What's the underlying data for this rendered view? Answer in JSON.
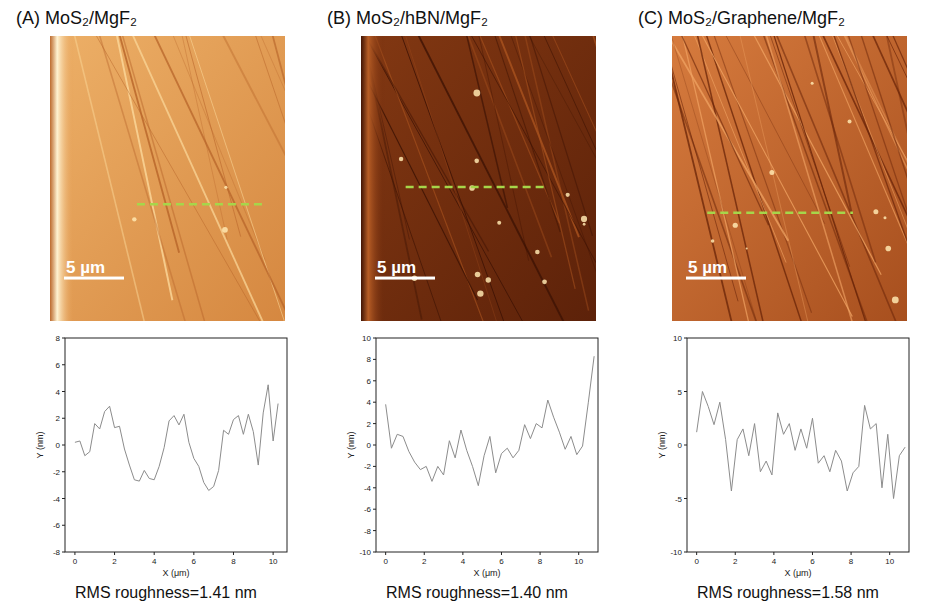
{
  "chart_data": [
    {
      "type": "line",
      "title": "(A) MoS₂/MgF₂",
      "scale_bar": "5 µm",
      "x_label": "X (μm)",
      "y_label": "Y (nm)",
      "annotation": "RMS roughness=1.41 nm",
      "color": "#8c8c8c",
      "x": [
        0,
        0.25,
        0.5,
        0.75,
        1,
        1.25,
        1.5,
        1.75,
        2,
        2.25,
        2.5,
        2.75,
        3,
        3.25,
        3.5,
        3.75,
        4,
        4.25,
        4.5,
        4.75,
        5,
        5.25,
        5.5,
        5.75,
        6,
        6.25,
        6.5,
        6.75,
        7,
        7.25,
        7.5,
        7.75,
        8,
        8.25,
        8.5,
        8.75,
        9,
        9.25,
        9.5,
        9.75,
        10,
        10.25
      ],
      "values": [
        0.2,
        0.3,
        -0.8,
        -0.5,
        1.6,
        1.2,
        2.5,
        2.9,
        1.3,
        1.4,
        -0.3,
        -1.5,
        -2.6,
        -2.7,
        -1.9,
        -2.5,
        -2.6,
        -1.6,
        -0.2,
        1.8,
        2.2,
        1.5,
        2.3,
        0.2,
        -1.0,
        -1.6,
        -2.8,
        -3.4,
        -3.1,
        -1.9,
        1.1,
        0.8,
        1.9,
        2.2,
        0.8,
        2.3,
        1.0,
        -1.5,
        2.4,
        4.5,
        0.3,
        3.1
      ],
      "xlim": [
        -0.5,
        10.7
      ],
      "ylim": [
        -8,
        8
      ],
      "xticks": [
        0,
        2,
        4,
        6,
        8,
        10
      ],
      "yticks": [
        -8,
        -6,
        -4,
        -2,
        0,
        2,
        4,
        6,
        8
      ]
    },
    {
      "type": "line",
      "title": "(B) MoS₂/hBN/MgF₂",
      "scale_bar": "5 µm",
      "x_label": "X (μm)",
      "y_label": "Y (nm)",
      "annotation": "RMS roughness=1.40 nm",
      "color": "#8c8c8c",
      "x": [
        0,
        0.3,
        0.6,
        0.9,
        1.2,
        1.5,
        1.8,
        2.1,
        2.4,
        2.7,
        3.0,
        3.3,
        3.6,
        3.9,
        4.2,
        4.5,
        4.8,
        5.1,
        5.4,
        5.7,
        6.0,
        6.3,
        6.6,
        6.9,
        7.2,
        7.5,
        7.8,
        8.1,
        8.4,
        8.7,
        9.0,
        9.3,
        9.6,
        9.9,
        10.2,
        10.5,
        10.8
      ],
      "values": [
        3.8,
        -0.3,
        1.0,
        0.8,
        -0.6,
        -1.6,
        -2.3,
        -2.0,
        -3.4,
        -2.0,
        -2.8,
        0.4,
        -1.2,
        1.4,
        -0.5,
        -2.0,
        -3.8,
        -1.0,
        0.8,
        -2.6,
        -0.8,
        -0.3,
        -1.2,
        -0.5,
        1.9,
        0.6,
        2.0,
        1.6,
        4.2,
        2.6,
        1.2,
        -0.4,
        0.8,
        -0.9,
        -0.1,
        4.0,
        8.3
      ],
      "xlim": [
        -0.5,
        11
      ],
      "ylim": [
        -10,
        10
      ],
      "xticks": [
        0,
        2,
        4,
        6,
        8,
        10
      ],
      "yticks": [
        -10,
        -8,
        -6,
        -4,
        -2,
        0,
        2,
        4,
        6,
        8,
        10
      ]
    },
    {
      "type": "line",
      "title": "(C) MoS₂/Graphene/MgF₂",
      "scale_bar": "5 µm",
      "x_label": "X (μm)",
      "y_label": "Y (nm)",
      "annotation": "RMS roughness=1.58 nm",
      "color": "#8c8c8c",
      "x": [
        0,
        0.3,
        0.6,
        0.9,
        1.2,
        1.5,
        1.8,
        2.1,
        2.4,
        2.7,
        3.0,
        3.3,
        3.6,
        3.9,
        4.2,
        4.5,
        4.8,
        5.1,
        5.4,
        5.7,
        6.0,
        6.3,
        6.6,
        6.9,
        7.2,
        7.5,
        7.8,
        8.1,
        8.4,
        8.7,
        9.0,
        9.3,
        9.6,
        9.9,
        10.2,
        10.5,
        10.8
      ],
      "values": [
        1.2,
        5.0,
        3.6,
        1.9,
        4.0,
        0.5,
        -4.3,
        0.5,
        1.5,
        -1.0,
        2.0,
        -2.5,
        -1.5,
        -2.8,
        3.0,
        1.0,
        2.0,
        -0.5,
        1.5,
        -0.3,
        2.5,
        -1.7,
        -1.0,
        -2.5,
        -0.5,
        -1.5,
        -4.3,
        -2.6,
        -2.0,
        3.7,
        1.5,
        2.0,
        -4.0,
        1.0,
        -5.0,
        -1.0,
        -0.2
      ],
      "xlim": [
        -0.5,
        11
      ],
      "ylim": [
        -10,
        10
      ],
      "xticks": [
        0,
        2,
        4,
        6,
        8,
        10
      ],
      "yticks": [
        -10,
        -5,
        0,
        5,
        10
      ]
    }
  ]
}
